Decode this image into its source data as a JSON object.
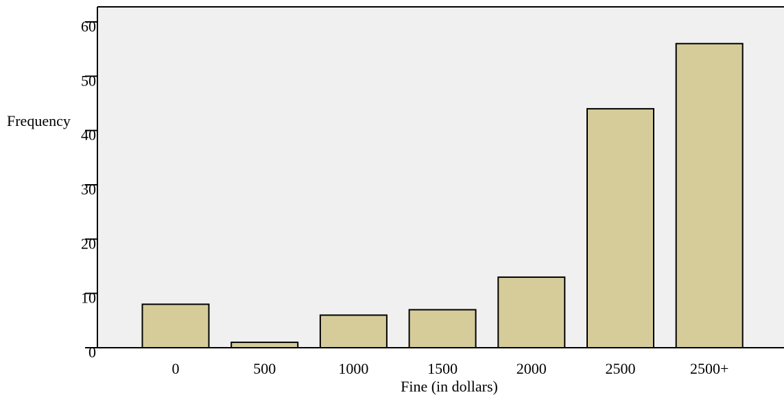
{
  "chart_data": {
    "type": "bar",
    "categories": [
      "0",
      "500",
      "1000",
      "1500",
      "2000",
      "2500",
      "2500+"
    ],
    "values": [
      8,
      1,
      6,
      7,
      13,
      44,
      56
    ],
    "xlabel": "Fine (in dollars)",
    "ylabel": "Frequency",
    "ylim": [
      0,
      60
    ],
    "yticks": [
      0,
      10,
      20,
      30,
      40,
      50,
      60
    ],
    "grid": false,
    "colors": {
      "plot_background": "#f0f0f0",
      "bar_fill": "#d5cc9a",
      "bar_stroke": "#000000",
      "axis": "#000000"
    }
  }
}
